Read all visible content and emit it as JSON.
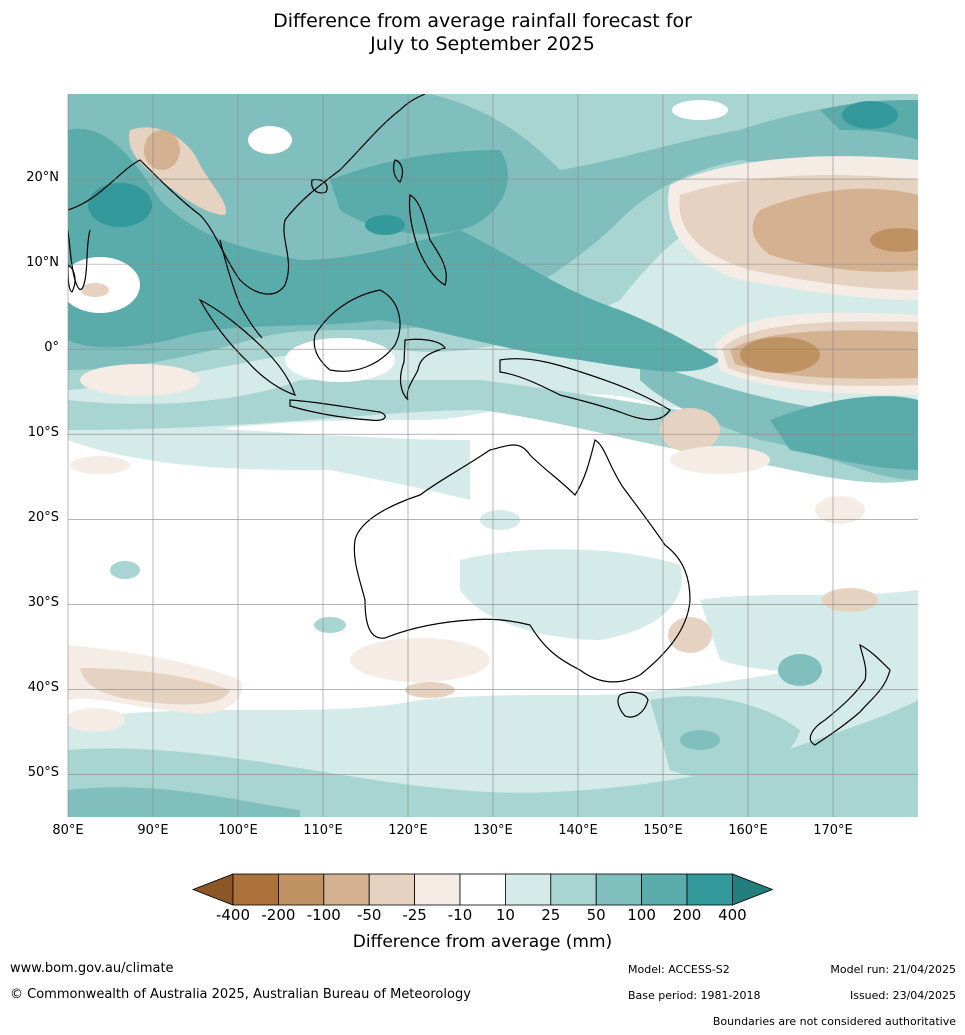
{
  "title": {
    "line1": "Difference from average rainfall forecast for",
    "line2": "July to September 2025"
  },
  "map": {
    "lon_range": [
      80,
      180
    ],
    "lat_range": [
      -55,
      30
    ],
    "lat_ticks": [
      {
        "lat": 20,
        "label": "20°N"
      },
      {
        "lat": 10,
        "label": "10°N"
      },
      {
        "lat": 0,
        "label": "0°"
      },
      {
        "lat": -10,
        "label": "10°S"
      },
      {
        "lat": -20,
        "label": "20°S"
      },
      {
        "lat": -30,
        "label": "30°S"
      },
      {
        "lat": -40,
        "label": "40°S"
      },
      {
        "lat": -50,
        "label": "50°S"
      }
    ],
    "lon_ticks": [
      {
        "lon": 80,
        "label": "80°E"
      },
      {
        "lon": 90,
        "label": "90°E"
      },
      {
        "lon": 100,
        "label": "100°E"
      },
      {
        "lon": 110,
        "label": "110°E"
      },
      {
        "lon": 120,
        "label": "120°E"
      },
      {
        "lon": 130,
        "label": "130°E"
      },
      {
        "lon": 140,
        "label": "140°E"
      },
      {
        "lon": 150,
        "label": "150°E"
      },
      {
        "lon": 160,
        "label": "160°E"
      },
      {
        "lon": 170,
        "label": "170°E"
      }
    ],
    "gridlines": true
  },
  "colorbar": {
    "title": "Difference from average (mm)",
    "labels": [
      "-400",
      "-200",
      "-100",
      "-50",
      "-25",
      "-10",
      "10",
      "25",
      "50",
      "100",
      "200",
      "400"
    ],
    "colors": {
      "lt_-400": "#8c5626",
      "b1": "#ab723b",
      "b2": "#c09263",
      "b3": "#d3b191",
      "b4": "#e6d2c0",
      "b5": "#f5ece6",
      "b6": "#ffffff",
      "b7": "#d5ebe9",
      "b8": "#a8d5d2",
      "b9": "#80bfbd",
      "b10": "#5aacaa",
      "b11": "#34999a",
      "gt_400": "#237e7c"
    }
  },
  "footer": {
    "url": "www.bom.gov.au/climate",
    "copyright": "© Commonwealth of Australia 2025, Australian Bureau of Meteorology",
    "model": "Model: ACCESS-S2",
    "base_period": "Base period: 1981-2018",
    "model_run": "Model run: 21/04/2025",
    "issued": "Issued: 23/04/2025",
    "disclaimer": "Boundaries are not considered authoritative"
  }
}
